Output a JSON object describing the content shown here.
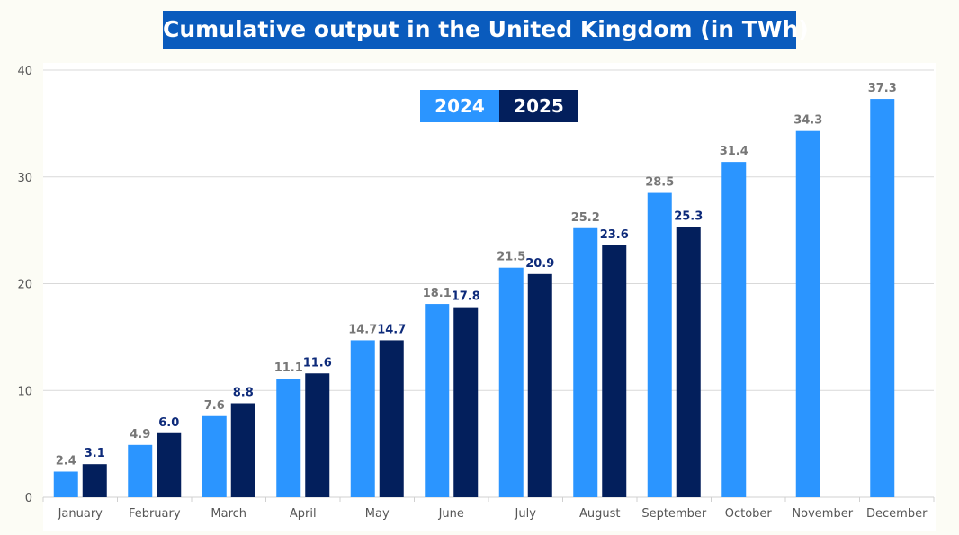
{
  "chart_data": {
    "type": "bar",
    "title": "Cumulative output in the United Kingdom (in TWh)",
    "xlabel": "",
    "ylabel": "",
    "ylim": [
      0,
      40
    ],
    "yticks": [
      0,
      10,
      20,
      30,
      40
    ],
    "grid": true,
    "legend_position": "top-center",
    "categories": [
      "January",
      "February",
      "March",
      "April",
      "May",
      "June",
      "July",
      "August",
      "September",
      "October",
      "November",
      "December"
    ],
    "series": [
      {
        "name": "2024",
        "color": "#2b95ff",
        "label_color": "#777777",
        "values": [
          2.4,
          4.9,
          7.6,
          11.1,
          14.7,
          18.1,
          21.5,
          25.2,
          28.5,
          31.4,
          34.3,
          37.3
        ]
      },
      {
        "name": "2025",
        "color": "#031f5c",
        "label_color": "#0d2a7a",
        "values": [
          3.1,
          6.0,
          8.8,
          11.6,
          14.7,
          17.8,
          20.9,
          23.6,
          25.3,
          null,
          null,
          null
        ]
      }
    ]
  }
}
